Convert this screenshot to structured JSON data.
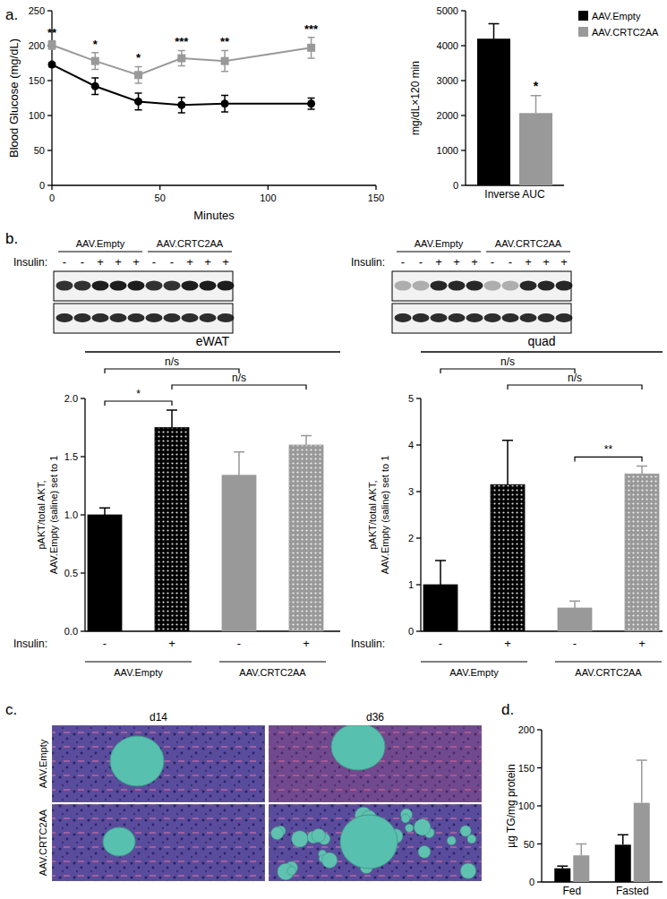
{
  "panel_labels": [
    "a.",
    "b.",
    "c.",
    "d."
  ],
  "chart_data": [
    {
      "type": "line",
      "x_label": "Minutes",
      "y_label": "Blood Glucose (mg/dL)",
      "x": [
        0,
        20,
        40,
        60,
        80,
        120
      ],
      "xlim": [
        0,
        150
      ],
      "xticks": [
        0,
        50,
        100,
        150
      ],
      "ylim": [
        0,
        250
      ],
      "yticks": [
        0,
        50,
        100,
        150,
        200,
        250
      ],
      "legend": "right",
      "series": [
        {
          "name": "AAV.Empty",
          "color": "#000000",
          "marker": "circle",
          "values": [
            173,
            142,
            120,
            115,
            117,
            117
          ],
          "errors": [
            3,
            12,
            12,
            11,
            12,
            8
          ]
        },
        {
          "name": "AAV.CRTC2AA",
          "color": "#999999",
          "marker": "square",
          "values": [
            201,
            178,
            158,
            182,
            178,
            197
          ],
          "errors": [
            6,
            12,
            12,
            11,
            15,
            15
          ],
          "significance": [
            "**",
            "*",
            "*",
            "***",
            "**",
            "***"
          ]
        }
      ]
    },
    {
      "type": "bar",
      "y_label": "mg/dL×120 min",
      "categories": [
        "Inverse AUC"
      ],
      "ylim": [
        0,
        5000
      ],
      "yticks": [
        0,
        1000,
        2000,
        3000,
        4000,
        5000
      ],
      "series": [
        {
          "color": "#000000",
          "values": [
            4200
          ],
          "errors": [
            430
          ]
        },
        {
          "color": "#999999",
          "values": [
            2070
          ],
          "errors": [
            500
          ],
          "significance": [
            "*"
          ]
        }
      ]
    },
    {
      "type": "bar",
      "title": "eWAT",
      "y_label": [
        "pAKT/total AKT,",
        "AAV.Empty (saline) set to 1"
      ],
      "x_label": "Insulin:",
      "categories": [
        "-",
        "+",
        "-",
        "+"
      ],
      "groups": [
        {
          "label": "AAV.Empty",
          "categories": [
            0,
            1
          ]
        },
        {
          "label": "AAV.CRTC2AA",
          "categories": [
            2,
            3
          ]
        }
      ],
      "values": [
        1.0,
        1.75,
        1.34,
        1.6
      ],
      "errors": [
        0.06,
        0.15,
        0.2,
        0.08
      ],
      "colors": [
        "#000000",
        "#000000",
        "#999999",
        "#999999"
      ],
      "ylim": [
        0,
        2
      ],
      "yticks": [
        {
          "value": 0,
          "label": "0.0"
        },
        0.5,
        {
          "value": 1,
          "label": "1.0"
        },
        1.5,
        {
          "value": 2,
          "label": "2.0"
        }
      ],
      "comparisons": [
        {
          "between": [
            0,
            1
          ],
          "label": "*"
        },
        {
          "between": [
            0,
            2
          ],
          "label": "n/s"
        },
        {
          "between": [
            1,
            3
          ],
          "label": "n/s"
        }
      ]
    },
    {
      "type": "bar",
      "title": "quad",
      "y_label": [
        "pAKT/total AKT,",
        "AAV.Empty (saline) set to 1"
      ],
      "x_label": "Insulin:",
      "categories": [
        "-",
        "+",
        "-",
        "+"
      ],
      "groups": [
        {
          "label": "AAV.Empty",
          "categories": [
            0,
            1
          ]
        },
        {
          "label": "AAV.CRTC2AA",
          "categories": [
            2,
            3
          ]
        }
      ],
      "values": [
        1.0,
        3.15,
        0.5,
        3.38
      ],
      "errors": [
        0.52,
        0.95,
        0.15,
        0.17
      ],
      "colors": [
        "#000000",
        "#000000",
        "#999999",
        "#999999"
      ],
      "ylim": [
        0,
        5
      ],
      "yticks": [
        0,
        1,
        2,
        3,
        4,
        5
      ],
      "comparisons": [
        {
          "between": [
            2,
            3
          ],
          "label": "**"
        },
        {
          "between": [
            0,
            2
          ],
          "label": "n/s"
        },
        {
          "between": [
            1,
            3
          ],
          "label": "n/s"
        }
      ]
    },
    {
      "type": "bar",
      "y_label": "µg TG/mg protein",
      "categories": [
        "Fed",
        "Fasted"
      ],
      "ylim": [
        0,
        200
      ],
      "yticks": [
        0,
        50,
        100,
        150,
        200
      ],
      "series": [
        {
          "color": "#000000",
          "values": [
            18,
            49
          ],
          "errors": [
            3,
            13
          ]
        },
        {
          "color": "#999999",
          "values": [
            35,
            104
          ],
          "errors": [
            15,
            56
          ]
        }
      ]
    }
  ],
  "blots": [
    {
      "groups": [
        "AAV.Empty",
        "AAV.CRTC2AA"
      ],
      "label": "Insulin:",
      "lanes": [
        "-",
        "-",
        "+",
        "+",
        "+",
        "-",
        "-",
        "+",
        "+",
        "+"
      ]
    },
    {
      "groups": [
        "AAV.Empty",
        "AAV.CRTC2AA"
      ],
      "label": "Insulin:",
      "lanes": [
        "-",
        "-",
        "+",
        "+",
        "+",
        "-",
        "-",
        "+",
        "+",
        "+"
      ]
    }
  ],
  "histology": {
    "columns": [
      "d14",
      "d36"
    ],
    "rows": [
      "AAV.Empty",
      "AAV.CRTC2AA"
    ]
  }
}
